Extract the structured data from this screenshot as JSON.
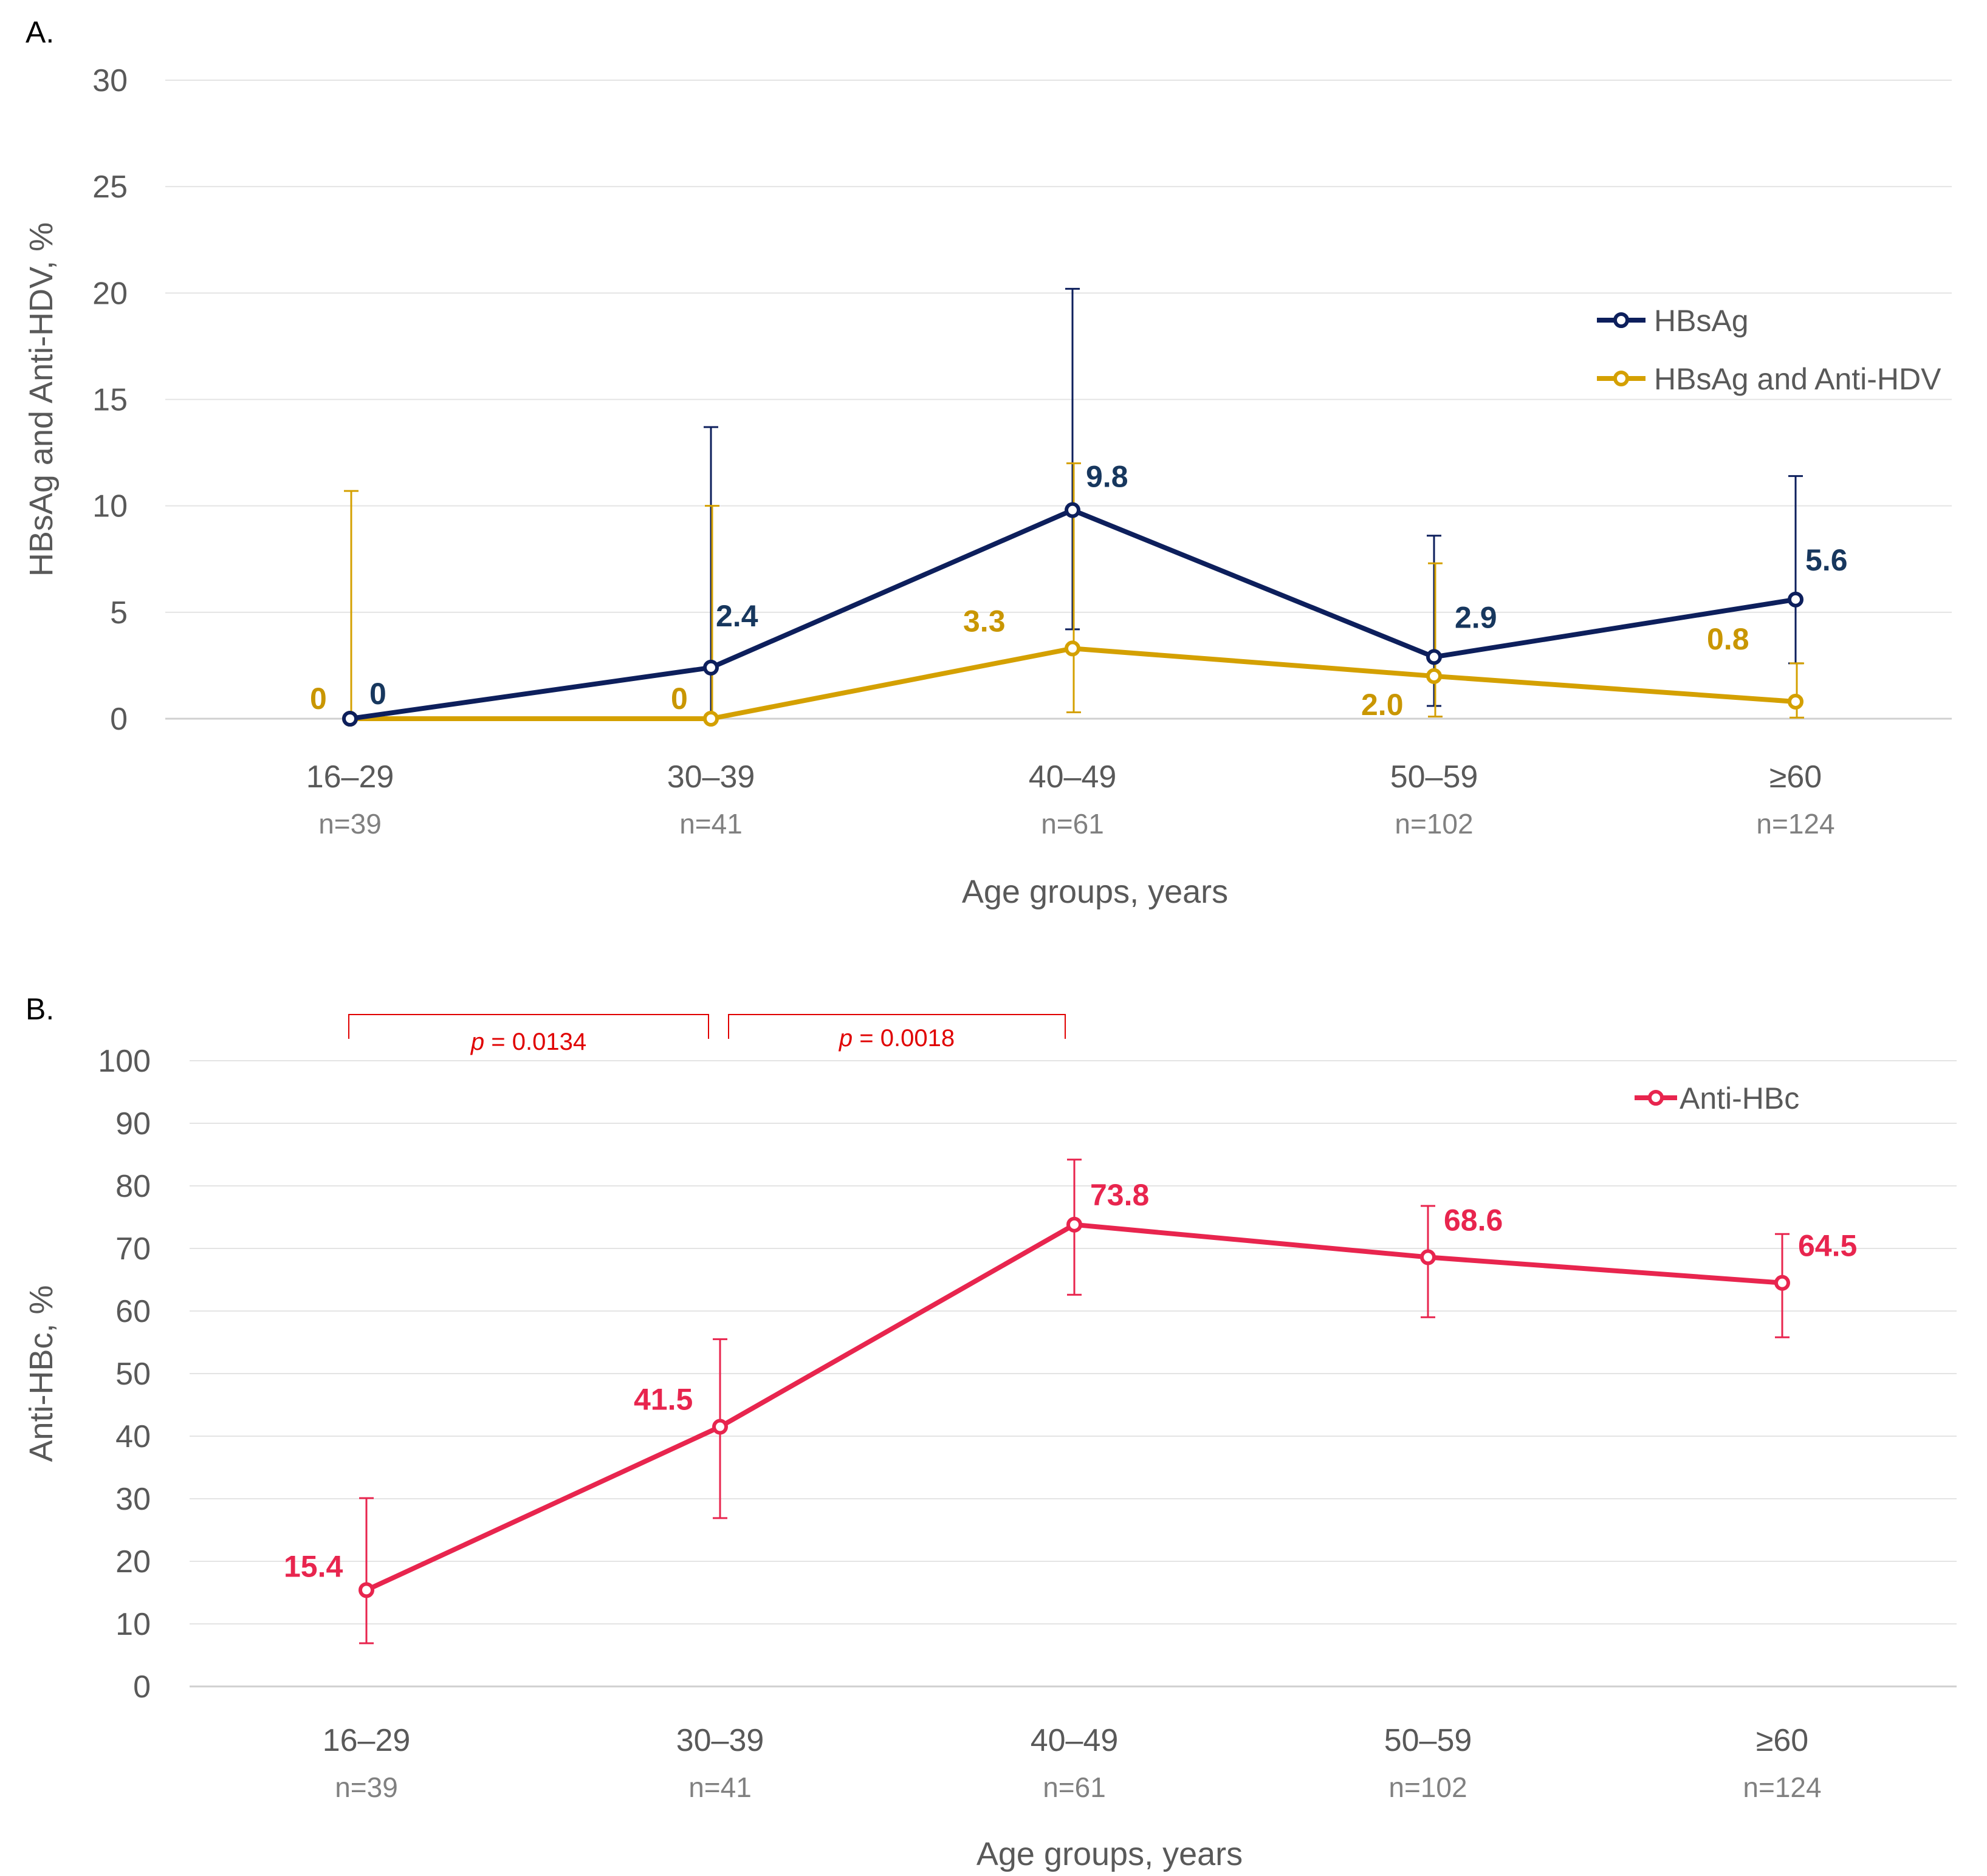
{
  "chart_data": [
    {
      "panel": "A.",
      "type": "line",
      "categories": [
        "16–29",
        "30–39",
        "40–49",
        "50–59",
        "≥60"
      ],
      "n_labels": [
        "n=39",
        "n=41",
        "n=61",
        "n=102",
        "n=124"
      ],
      "xlabel": "Age groups, years",
      "ylabel": "HBsAg and Anti-HDV, %",
      "ylim": [
        0,
        30
      ],
      "yticks": [
        "0",
        "5",
        "10",
        "15",
        "20",
        "25",
        "30"
      ],
      "legend_position": "right",
      "series": [
        {
          "name": "HBsAg",
          "color": "#0d1f5c",
          "label_color": "#17375e",
          "values": [
            0,
            2.4,
            9.8,
            2.9,
            5.6
          ],
          "labels": [
            "0",
            "2.4",
            "9.8",
            "2.9",
            "5.6"
          ],
          "ci_low": [
            0,
            0,
            4.2,
            0.6,
            2.6
          ],
          "ci_high": [
            0,
            13.7,
            20.2,
            8.6,
            11.4
          ]
        },
        {
          "name": "HBsAg and Anti-HDV",
          "color": "#d4a000",
          "label_color": "#c99600",
          "values": [
            0,
            0,
            3.3,
            2.0,
            0.8
          ],
          "labels": [
            "0",
            "0",
            "3.3",
            "2.0",
            "0.8"
          ],
          "ci_low": [
            0,
            0,
            0.3,
            0.1,
            0.05
          ],
          "ci_high": [
            10.7,
            10.0,
            12.0,
            7.3,
            2.6
          ]
        }
      ]
    },
    {
      "panel": "B.",
      "type": "line",
      "categories": [
        "16–29",
        "30–39",
        "40–49",
        "50–59",
        "≥60"
      ],
      "n_labels": [
        "n=39",
        "n=41",
        "n=61",
        "n=102",
        "n=124"
      ],
      "xlabel": "Age groups, years",
      "ylabel": "Anti-HBc, %",
      "ylim": [
        0,
        100
      ],
      "yticks": [
        "0",
        "10",
        "20",
        "30",
        "40",
        "50",
        "60",
        "70",
        "80",
        "90",
        "100"
      ],
      "legend_position": "top-right",
      "series": [
        {
          "name": "Anti-HBc",
          "color": "#e8254e",
          "label_color": "#e8254e",
          "values": [
            15.4,
            41.5,
            73.8,
            68.6,
            64.5
          ],
          "labels": [
            "15.4",
            "41.5",
            "73.8",
            "68.6",
            "64.5"
          ],
          "ci_low": [
            6.9,
            26.9,
            62.6,
            59.0,
            55.8
          ],
          "ci_high": [
            30.1,
            55.5,
            84.2,
            76.8,
            72.3
          ]
        }
      ],
      "annotations": [
        {
          "p_symbol": "p",
          "text": " = 0.0134",
          "from": 0,
          "to": 1
        },
        {
          "p_symbol": "p",
          "text": " = 0.0018",
          "from": 1,
          "to": 2
        }
      ]
    }
  ]
}
